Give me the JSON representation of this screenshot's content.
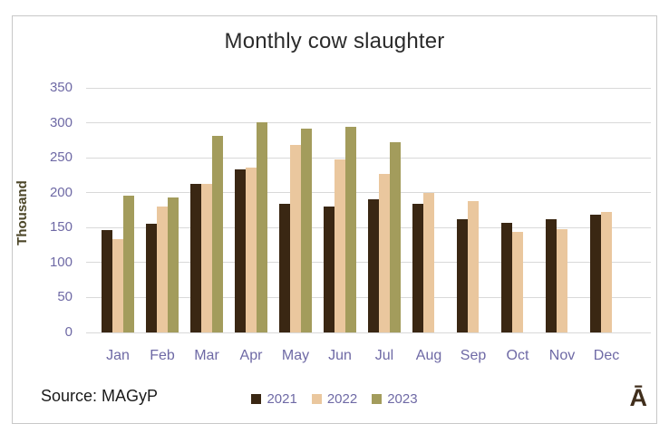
{
  "chart": {
    "source_label": "Source: MAGyP",
    "watermark": "Ā",
    "frame_border_color": "#c8c8c8",
    "gridline_color": "#d9d9d9",
    "title_color": "#2b2b2b",
    "axis_tick_label_color": "#6e69a5",
    "y_axis_title_color": "#4c4628",
    "source_text_color": "#1a1a1a",
    "watermark_color": "#402e1c"
  },
  "chart_data": {
    "type": "bar",
    "title": "Monthly cow slaughter",
    "xlabel": "",
    "ylabel": "Thousand",
    "categories": [
      "Jan",
      "Feb",
      "Mar",
      "Apr",
      "May",
      "Jun",
      "Jul",
      "Aug",
      "Sep",
      "Oct",
      "Nov",
      "Dec"
    ],
    "series": [
      {
        "name": "2021",
        "color": "#3a2713",
        "values": [
          147,
          155,
          213,
          234,
          184,
          180,
          191,
          184,
          162,
          157,
          162,
          168
        ]
      },
      {
        "name": "2022",
        "color": "#eac79e",
        "values": [
          134,
          180,
          213,
          236,
          269,
          248,
          227,
          200,
          188,
          144,
          148,
          173
        ]
      },
      {
        "name": "2023",
        "color": "#a39c5c",
        "values": [
          196,
          193,
          281,
          301,
          292,
          294,
          272,
          null,
          null,
          null,
          null,
          null
        ]
      }
    ],
    "ylim": [
      0,
      350
    ],
    "yticks": [
      0,
      50,
      100,
      150,
      200,
      250,
      300,
      350
    ],
    "grid": true,
    "legend_position": "bottom-center"
  }
}
